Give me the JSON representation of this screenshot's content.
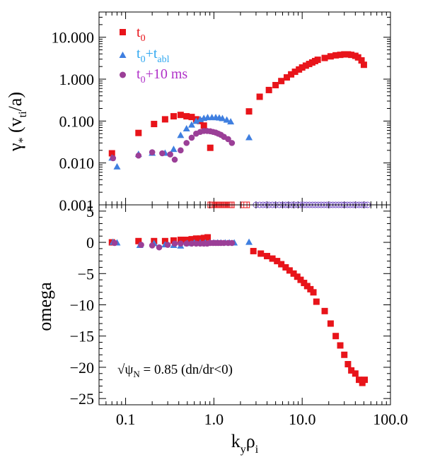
{
  "colors": {
    "t0": "#e8141a",
    "t0_tabl": "#3f7fe0",
    "t0_10ms": "#9b3f97",
    "legend_t0_tabl_text": "#30a8f0",
    "legend_t0_10ms_text": "#b030c8",
    "open_marker_red": "#e8141a",
    "open_marker_purple": "#7a55c8"
  },
  "chart_data": [
    {
      "type": "scatter",
      "panel": "top",
      "xscale": "log",
      "yscale": "log",
      "xlim": [
        0.05,
        100.0
      ],
      "ylim": [
        0.001,
        40.0
      ],
      "ylabel": "γ* (vti/a)",
      "ylabel_parts": {
        "greek": "γ",
        "star": "*",
        "open": " (v",
        "sub": "ti",
        "close": "/a)"
      },
      "yticks": [
        {
          "value": 10.0,
          "label": "10.000"
        },
        {
          "value": 1.0,
          "label": "1.000"
        },
        {
          "value": 0.1,
          "label": "0.100"
        },
        {
          "value": 0.01,
          "label": "0.010"
        },
        {
          "value": 0.001,
          "label": "0.001"
        }
      ],
      "legend": {
        "position": "top-left",
        "entries": [
          {
            "key": "t0",
            "base": "t",
            "sub": "0",
            "extra": "",
            "extra_sub": "",
            "tail": "",
            "marker": "square"
          },
          {
            "key": "t0_tabl",
            "base": "t",
            "sub": "0",
            "extra": "+t",
            "extra_sub": "abl",
            "tail": "",
            "marker": "triangle"
          },
          {
            "key": "t0_10ms",
            "base": "t",
            "sub": "0",
            "extra": "",
            "extra_sub": "",
            "tail": "+10 ms",
            "marker": "circle"
          }
        ]
      },
      "series": [
        {
          "name": "t0",
          "marker": "square",
          "x": [
            0.07,
            0.14,
            0.21,
            0.28,
            0.35,
            0.42,
            0.49,
            0.56,
            0.63,
            0.7,
            0.77,
            0.91,
            2.5,
            3.3,
            4.2,
            5.0,
            5.8,
            6.7,
            7.5,
            8.3,
            9.2,
            10.0,
            11.0,
            12.0,
            13.0,
            14.0,
            15.0,
            18.0,
            21.0,
            24.0,
            27.0,
            30.0,
            33.0,
            36.0,
            40.0,
            43.0,
            47.0,
            50.0
          ],
          "y": [
            0.017,
            0.052,
            0.085,
            0.11,
            0.13,
            0.14,
            0.13,
            0.125,
            0.11,
            0.1,
            0.078,
            0.023,
            0.17,
            0.38,
            0.55,
            0.72,
            0.9,
            1.1,
            1.3,
            1.5,
            1.7,
            1.9,
            2.1,
            2.3,
            2.5,
            2.7,
            2.9,
            3.2,
            3.5,
            3.7,
            3.8,
            3.9,
            3.9,
            3.8,
            3.6,
            3.3,
            2.8,
            2.2
          ]
        },
        {
          "name": "t0+tabl",
          "marker": "triangle",
          "x": [
            0.07,
            0.08,
            0.14,
            0.2,
            0.28,
            0.35,
            0.42,
            0.49,
            0.56,
            0.63,
            0.7,
            0.77,
            0.85,
            0.95,
            1.05,
            1.15,
            1.25,
            1.4,
            1.55,
            2.5
          ],
          "y": [
            0.013,
            0.008,
            0.016,
            0.017,
            0.017,
            0.021,
            0.045,
            0.065,
            0.08,
            0.098,
            0.108,
            0.115,
            0.12,
            0.12,
            0.12,
            0.118,
            0.114,
            0.105,
            0.095,
            0.04
          ]
        },
        {
          "name": "t0+10 ms",
          "marker": "circle",
          "x": [
            0.072,
            0.14,
            0.2,
            0.26,
            0.32,
            0.36,
            0.42,
            0.49,
            0.56,
            0.63,
            0.7,
            0.77,
            0.84,
            0.91,
            0.98,
            1.05,
            1.12,
            1.2,
            1.3,
            1.45,
            1.6
          ],
          "y": [
            0.013,
            0.015,
            0.018,
            0.017,
            0.016,
            0.012,
            0.02,
            0.03,
            0.04,
            0.05,
            0.055,
            0.058,
            0.058,
            0.057,
            0.055,
            0.053,
            0.05,
            0.047,
            0.042,
            0.037,
            0.03
          ]
        }
      ],
      "open_markers": [
        {
          "name": "t0",
          "marker": "open-square",
          "y": 0.001,
          "x": [
            0.92,
            0.96,
            1.0,
            1.04,
            1.09,
            1.14,
            1.19,
            1.24,
            1.29,
            1.34,
            1.4,
            1.46,
            1.52,
            1.58,
            2.2,
            2.35
          ]
        },
        {
          "name": "t0+10 ms",
          "marker": "open-circle",
          "y": 0.001,
          "x": [
            3.0,
            3.3,
            3.6,
            3.9,
            4.2,
            4.6,
            5.0,
            5.5,
            6.0,
            6.5,
            7.0,
            7.6,
            8.2,
            8.9,
            9.6,
            10.4,
            11.2,
            12.1,
            13.1,
            14.1,
            15.2,
            16.4,
            17.7,
            19.1,
            20.6,
            22.2,
            24.0,
            25.9,
            27.9,
            30.1,
            32.5,
            35.0,
            37.8,
            40.8,
            44.0,
            47.5,
            51.2,
            55.0
          ]
        }
      ]
    },
    {
      "type": "scatter",
      "panel": "bottom",
      "xscale": "log",
      "yscale": "linear",
      "xlim": [
        0.05,
        100.0
      ],
      "ylim": [
        -26.0,
        6.0
      ],
      "xlabel": "kyρi",
      "xlabel_parts": {
        "k": "k",
        "ksub": "y",
        "rho": "ρ",
        "rsub": "i"
      },
      "ylabel": "omega",
      "xticks": [
        {
          "value": 0.1,
          "label": "0.1"
        },
        {
          "value": 1.0,
          "label": "1.0"
        },
        {
          "value": 10.0,
          "label": "10.0"
        },
        {
          "value": 100.0,
          "label": "100.0"
        }
      ],
      "yticks": [
        {
          "value": 5,
          "label": "5"
        },
        {
          "value": 0,
          "label": "0"
        },
        {
          "value": -5,
          "label": "−5"
        },
        {
          "value": -10,
          "label": "−10"
        },
        {
          "value": -15,
          "label": "−15"
        },
        {
          "value": -20,
          "label": "−20"
        },
        {
          "value": -25,
          "label": "−25"
        }
      ],
      "annotation": {
        "sqrt": "√",
        "psi": "ψ",
        "sub": "N",
        "rest": " = 0.85 (dn/dr<0)"
      },
      "series": [
        {
          "name": "t0",
          "marker": "square",
          "x": [
            0.07,
            0.14,
            0.21,
            0.28,
            0.35,
            0.42,
            0.49,
            0.56,
            0.63,
            0.7,
            0.77,
            0.85,
            2.8,
            3.4,
            4.0,
            4.6,
            5.2,
            5.8,
            6.5,
            7.2,
            8.0,
            8.8,
            9.6,
            10.5,
            11.4,
            12.4,
            13.4,
            14.5,
            18.0,
            21.0,
            24.0,
            27.0,
            30.0,
            33.0,
            36.0,
            40.0,
            44.0,
            48.0,
            51.0
          ],
          "y": [
            0.0,
            0.2,
            0.2,
            0.2,
            0.3,
            0.4,
            0.4,
            0.5,
            0.6,
            0.6,
            0.7,
            0.8,
            -1.4,
            -1.8,
            -2.2,
            -2.6,
            -3.0,
            -3.5,
            -4.0,
            -4.5,
            -5.0,
            -5.5,
            -6.0,
            -6.5,
            -7.0,
            -7.5,
            -8.0,
            -9.5,
            -11.0,
            -13.0,
            -15.0,
            -16.5,
            -18.0,
            -19.5,
            -20.5,
            -21.0,
            -22.0,
            -22.5,
            -22.0
          ]
        },
        {
          "name": "t0+tabl",
          "marker": "triangle",
          "x": [
            0.072,
            0.08,
            0.145,
            0.21,
            0.28,
            0.35,
            0.42,
            0.5,
            0.6,
            0.7,
            0.8,
            0.9,
            1.0,
            1.1,
            1.2,
            1.35,
            1.5,
            1.7,
            2.5
          ],
          "y": [
            0.0,
            -0.1,
            -0.5,
            -0.2,
            -0.4,
            -0.5,
            -0.6,
            -0.2,
            -0.1,
            -0.1,
            -0.1,
            -0.1,
            -0.1,
            -0.1,
            -0.1,
            -0.1,
            -0.1,
            -0.1,
            0.0
          ]
        },
        {
          "name": "t0+10 ms",
          "marker": "circle",
          "x": [
            0.075,
            0.15,
            0.2,
            0.24,
            0.3,
            0.36,
            0.42,
            0.49,
            0.56,
            0.63,
            0.7,
            0.77,
            0.84,
            0.91,
            0.98,
            1.05,
            1.12,
            1.2,
            1.3,
            1.45,
            1.6
          ],
          "y": [
            -0.1,
            -0.4,
            -0.5,
            -0.8,
            -0.4,
            -0.2,
            -0.2,
            -0.2,
            -0.2,
            -0.2,
            -0.2,
            -0.2,
            -0.2,
            -0.1,
            -0.1,
            -0.1,
            -0.1,
            -0.1,
            -0.1,
            -0.1,
            -0.1
          ]
        }
      ]
    }
  ]
}
